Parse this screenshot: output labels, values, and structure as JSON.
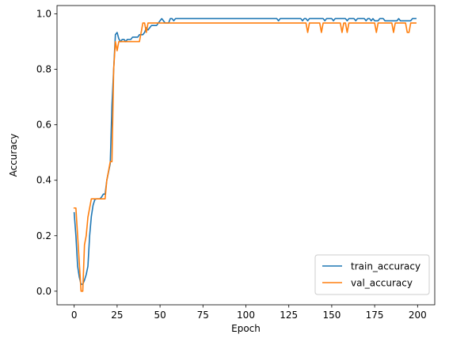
{
  "chart_data": {
    "type": "line",
    "title": "",
    "xlabel": "Epoch",
    "ylabel": "Accuracy",
    "xlim": [
      -10,
      210
    ],
    "ylim": [
      -0.049,
      1.03
    ],
    "xticks": [
      0,
      25,
      50,
      75,
      100,
      125,
      150,
      175,
      200
    ],
    "xtick_labels": [
      "0",
      "25",
      "50",
      "75",
      "100",
      "125",
      "150",
      "175",
      "200"
    ],
    "yticks": [
      0.0,
      0.2,
      0.4,
      0.6,
      0.8,
      1.0
    ],
    "ytick_labels": [
      "0.0",
      "0.2",
      "0.4",
      "0.6",
      "0.8",
      "1.0"
    ],
    "grid": false,
    "legend_position": "bottom-right",
    "series": [
      {
        "name": "train_accuracy",
        "color": "#1f77b4",
        "points": [
          [
            0,
            0.283
          ],
          [
            1,
            0.2
          ],
          [
            2,
            0.09
          ],
          [
            3,
            0.05
          ],
          [
            4,
            0.025
          ],
          [
            5,
            0.025
          ],
          [
            6,
            0.04
          ],
          [
            7,
            0.06
          ],
          [
            8,
            0.09
          ],
          [
            9,
            0.2
          ],
          [
            10,
            0.27
          ],
          [
            11,
            0.31
          ],
          [
            12,
            0.33
          ],
          [
            13,
            0.333
          ],
          [
            14,
            0.333
          ],
          [
            15,
            0.333
          ],
          [
            16,
            0.34
          ],
          [
            17,
            0.35
          ],
          [
            18,
            0.35
          ],
          [
            19,
            0.4
          ],
          [
            20,
            0.43
          ],
          [
            21,
            0.46
          ],
          [
            22,
            0.67
          ],
          [
            23,
            0.8
          ],
          [
            24,
            0.925
          ],
          [
            25,
            0.933
          ],
          [
            26,
            0.91
          ],
          [
            27,
            0.9
          ],
          [
            28,
            0.908
          ],
          [
            29,
            0.908
          ],
          [
            30,
            0.9
          ],
          [
            31,
            0.908
          ],
          [
            32,
            0.908
          ],
          [
            33,
            0.908
          ],
          [
            34,
            0.916
          ],
          [
            35,
            0.916
          ],
          [
            36,
            0.916
          ],
          [
            37,
            0.916
          ],
          [
            38,
            0.925
          ],
          [
            39,
            0.925
          ],
          [
            40,
            0.925
          ],
          [
            41,
            0.933
          ],
          [
            42,
            0.95
          ],
          [
            43,
            0.942
          ],
          [
            44,
            0.95
          ],
          [
            45,
            0.958
          ],
          [
            46,
            0.958
          ],
          [
            47,
            0.958
          ],
          [
            48,
            0.958
          ],
          [
            49,
            0.967
          ],
          [
            50,
            0.975
          ],
          [
            51,
            0.983
          ],
          [
            52,
            0.975
          ],
          [
            53,
            0.967
          ],
          [
            54,
            0.967
          ],
          [
            55,
            0.967
          ],
          [
            56,
            0.983
          ],
          [
            57,
            0.983
          ],
          [
            58,
            0.975
          ],
          [
            59,
            0.983
          ],
          [
            60,
            0.983
          ],
          [
            118,
            0.983
          ],
          [
            119,
            0.975
          ],
          [
            120,
            0.983
          ],
          [
            132,
            0.983
          ],
          [
            133,
            0.975
          ],
          [
            134,
            0.983
          ],
          [
            135,
            0.983
          ],
          [
            136,
            0.975
          ],
          [
            137,
            0.983
          ],
          [
            145,
            0.983
          ],
          [
            146,
            0.975
          ],
          [
            147,
            0.983
          ],
          [
            150,
            0.983
          ],
          [
            151,
            0.975
          ],
          [
            152,
            0.983
          ],
          [
            158,
            0.983
          ],
          [
            159,
            0.975
          ],
          [
            160,
            0.983
          ],
          [
            163,
            0.983
          ],
          [
            164,
            0.975
          ],
          [
            165,
            0.983
          ],
          [
            169,
            0.983
          ],
          [
            170,
            0.975
          ],
          [
            171,
            0.983
          ],
          [
            172,
            0.983
          ],
          [
            173,
            0.975
          ],
          [
            174,
            0.983
          ],
          [
            175,
            0.975
          ],
          [
            177,
            0.975
          ],
          [
            178,
            0.983
          ],
          [
            180,
            0.983
          ],
          [
            181,
            0.975
          ],
          [
            188,
            0.975
          ],
          [
            189,
            0.983
          ],
          [
            190,
            0.975
          ],
          [
            196,
            0.975
          ],
          [
            197,
            0.983
          ],
          [
            199,
            0.983
          ]
        ]
      },
      {
        "name": "val_accuracy",
        "color": "#ff7f0e",
        "points": [
          [
            0,
            0.3
          ],
          [
            1,
            0.3
          ],
          [
            2,
            0.2
          ],
          [
            3,
            0.1
          ],
          [
            4,
            0.0
          ],
          [
            5,
            0.0
          ],
          [
            6,
            0.167
          ],
          [
            7,
            0.2
          ],
          [
            8,
            0.267
          ],
          [
            9,
            0.3
          ],
          [
            10,
            0.333
          ],
          [
            11,
            0.333
          ],
          [
            12,
            0.333
          ],
          [
            13,
            0.333
          ],
          [
            14,
            0.333
          ],
          [
            15,
            0.333
          ],
          [
            16,
            0.333
          ],
          [
            17,
            0.333
          ],
          [
            18,
            0.333
          ],
          [
            19,
            0.4
          ],
          [
            20,
            0.433
          ],
          [
            21,
            0.467
          ],
          [
            22,
            0.467
          ],
          [
            23,
            0.8
          ],
          [
            24,
            0.9
          ],
          [
            25,
            0.867
          ],
          [
            26,
            0.9
          ],
          [
            38,
            0.9
          ],
          [
            39,
            0.933
          ],
          [
            40,
            0.967
          ],
          [
            41,
            0.967
          ],
          [
            42,
            0.933
          ],
          [
            43,
            0.967
          ],
          [
            135,
            0.967
          ],
          [
            136,
            0.933
          ],
          [
            137,
            0.967
          ],
          [
            143,
            0.967
          ],
          [
            144,
            0.933
          ],
          [
            145,
            0.967
          ],
          [
            155,
            0.967
          ],
          [
            156,
            0.933
          ],
          [
            157,
            0.967
          ],
          [
            158,
            0.967
          ],
          [
            159,
            0.933
          ],
          [
            160,
            0.967
          ],
          [
            175,
            0.967
          ],
          [
            176,
            0.933
          ],
          [
            177,
            0.967
          ],
          [
            185,
            0.967
          ],
          [
            186,
            0.933
          ],
          [
            187,
            0.967
          ],
          [
            193,
            0.967
          ],
          [
            194,
            0.933
          ],
          [
            195,
            0.933
          ],
          [
            196,
            0.967
          ],
          [
            199,
            0.967
          ]
        ]
      }
    ]
  }
}
